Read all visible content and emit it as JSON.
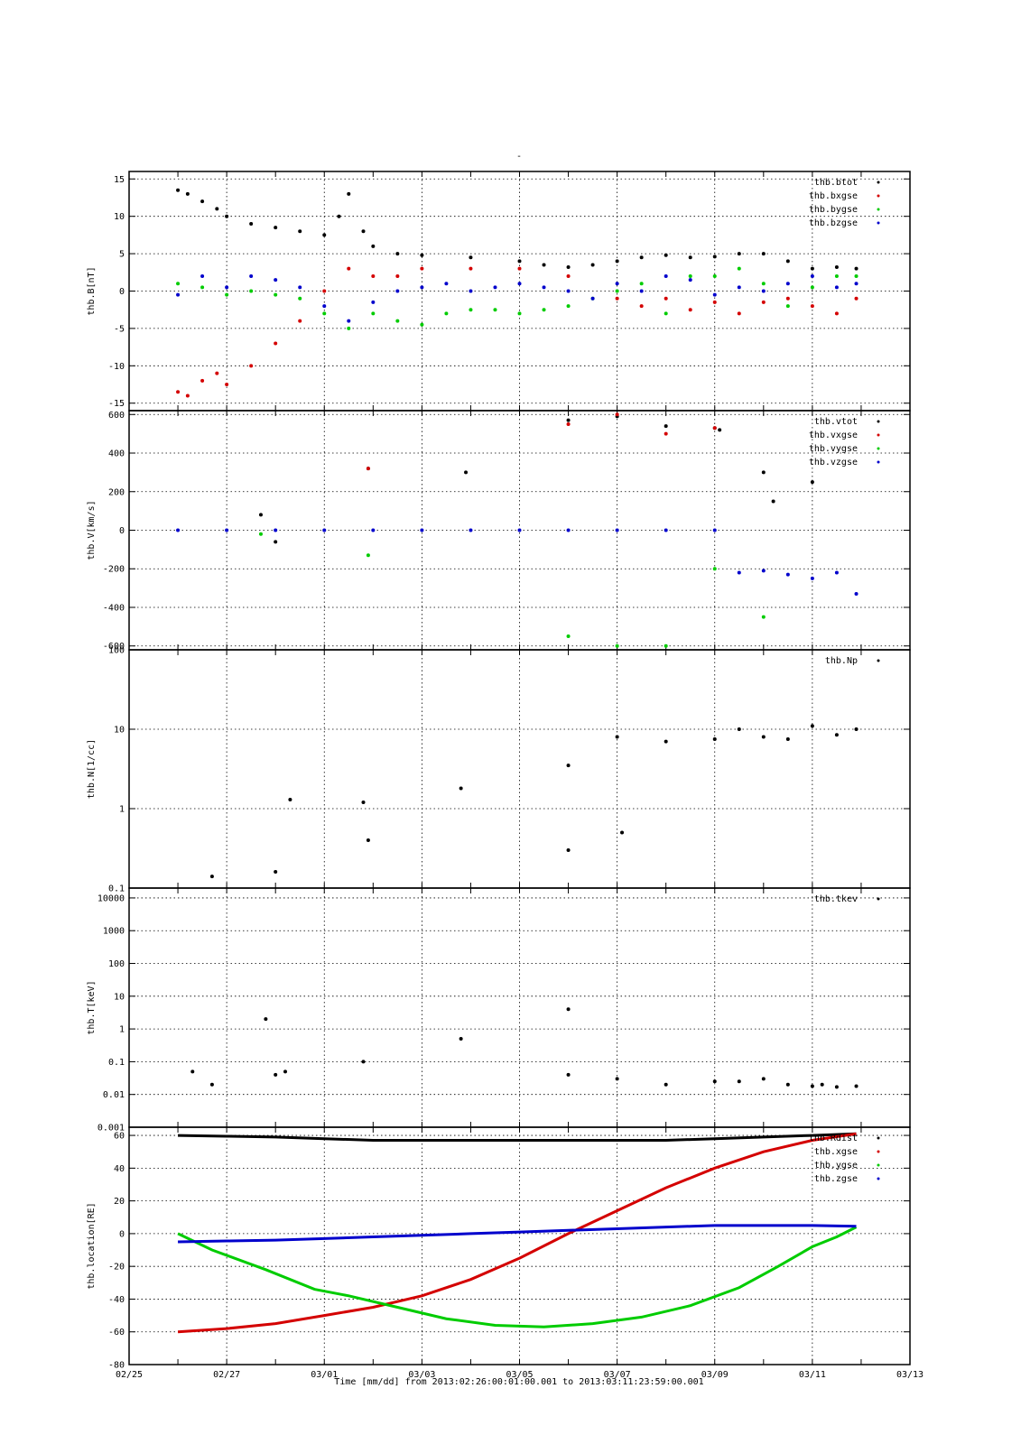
{
  "figure": {
    "title": "-",
    "x_axis": {
      "label": "Time [mm/dd]  from 2013:02:26:00:01:00.001  to  2013:03:11:23:59:00.001",
      "tick_labels": [
        "02/25",
        "02/27",
        "03/01",
        "03/03",
        "03/05",
        "03/07",
        "03/09",
        "03/11",
        "03/13"
      ]
    }
  },
  "chart_data": [
    {
      "type": "scatter",
      "ylabel": "thb.B[nT]",
      "ylim": [
        -16,
        16
      ],
      "yticks": [
        -15,
        -10,
        -5,
        0,
        5,
        10,
        15
      ],
      "ytick_labels": [
        "-15",
        "-10",
        "-5",
        "0",
        "5",
        "10",
        "15"
      ],
      "xlim": [
        0,
        16
      ],
      "grid": true,
      "legend_position": "top-right",
      "series": [
        {
          "name": "thb.btot",
          "color": "#000000",
          "x": [
            1.0,
            1.2,
            1.5,
            1.8,
            2.0,
            2.5,
            3.0,
            3.5,
            4.0,
            4.3,
            4.5,
            4.8,
            5.0,
            5.5,
            6.0,
            7.0,
            8.0,
            8.5,
            9.0,
            9.5,
            10.0,
            10.5,
            11.0,
            11.5,
            12.0,
            12.5,
            13.0,
            13.5,
            14.0,
            14.5,
            14.9
          ],
          "y": [
            13.5,
            13.0,
            12.0,
            11.0,
            10.0,
            9.0,
            8.5,
            8.0,
            7.5,
            10.0,
            13.0,
            8.0,
            6.0,
            5.0,
            4.8,
            4.5,
            4.0,
            3.5,
            3.2,
            3.5,
            4.0,
            4.5,
            4.8,
            4.5,
            4.6,
            5.0,
            5.0,
            4.0,
            3.0,
            3.2,
            3.0
          ]
        },
        {
          "name": "thb.bxgse",
          "color": "#d40000",
          "x": [
            1.0,
            1.2,
            1.5,
            1.8,
            2.0,
            2.5,
            3.0,
            3.5,
            4.0,
            4.5,
            5.0,
            5.5,
            6.0,
            7.0,
            8.0,
            9.0,
            10.0,
            10.5,
            11.0,
            11.5,
            12.0,
            12.5,
            13.0,
            13.5,
            14.0,
            14.5,
            14.9
          ],
          "y": [
            -13.5,
            -14.0,
            -12.0,
            -11.0,
            -12.5,
            -10.0,
            -7.0,
            -4.0,
            0.0,
            3.0,
            2.0,
            2.0,
            3.0,
            3.0,
            3.0,
            2.0,
            -1.0,
            -2.0,
            -1.0,
            -2.5,
            -1.5,
            -3.0,
            -1.5,
            -1.0,
            -2.0,
            -3.0,
            -1.0
          ]
        },
        {
          "name": "thb.bygse",
          "color": "#00cc00",
          "x": [
            1.0,
            1.5,
            2.0,
            2.5,
            3.0,
            3.5,
            4.0,
            4.5,
            5.0,
            5.5,
            6.0,
            6.5,
            7.0,
            7.5,
            8.0,
            8.5,
            9.0,
            9.5,
            10.0,
            10.5,
            11.0,
            11.5,
            12.0,
            12.5,
            13.0,
            13.5,
            14.0,
            14.5,
            14.9
          ],
          "y": [
            1.0,
            0.5,
            -0.5,
            0.0,
            -0.5,
            -1.0,
            -3.0,
            -5.0,
            -3.0,
            -4.0,
            -4.5,
            -3.0,
            -2.5,
            -2.5,
            -3.0,
            -2.5,
            -2.0,
            -1.0,
            0.0,
            1.0,
            -3.0,
            2.0,
            2.0,
            3.0,
            1.0,
            -2.0,
            0.5,
            2.0,
            2.0
          ]
        },
        {
          "name": "thb.bzgse",
          "color": "#0000cc",
          "x": [
            1.0,
            1.5,
            2.0,
            2.5,
            3.0,
            3.5,
            4.0,
            4.5,
            5.0,
            5.5,
            6.0,
            6.5,
            7.0,
            7.5,
            8.0,
            8.5,
            9.0,
            9.5,
            10.0,
            10.5,
            11.0,
            11.5,
            12.0,
            12.5,
            13.0,
            13.5,
            14.0,
            14.5,
            14.9
          ],
          "y": [
            -0.5,
            2.0,
            0.5,
            2.0,
            1.5,
            0.5,
            -2.0,
            -4.0,
            -1.5,
            0.0,
            0.5,
            1.0,
            0.0,
            0.5,
            1.0,
            0.5,
            0.0,
            -1.0,
            1.0,
            0.0,
            2.0,
            1.5,
            -0.5,
            0.5,
            0.0,
            1.0,
            2.0,
            0.5,
            1.0
          ]
        }
      ]
    },
    {
      "type": "scatter",
      "ylabel": "thb.V[km/s]",
      "ylim": [
        -620,
        620
      ],
      "yticks": [
        -600,
        -400,
        -200,
        0,
        200,
        400,
        600
      ],
      "ytick_labels": [
        "-600",
        "-400",
        "-200",
        "0",
        "200",
        "400",
        "600"
      ],
      "xlim": [
        0,
        16
      ],
      "grid": true,
      "legend_position": "top-right",
      "series": [
        {
          "name": "thb.vtot",
          "color": "#000000",
          "x": [
            2.7,
            3.0,
            4.9,
            6.9,
            9.0,
            10.0,
            11.0,
            12.0,
            12.1,
            13.0,
            13.2,
            14.0
          ],
          "y": [
            80,
            -60,
            320,
            300,
            570,
            590,
            540,
            530,
            520,
            300,
            150,
            250
          ]
        },
        {
          "name": "thb.vxgse",
          "color": "#d40000",
          "x": [
            4.9,
            9.0,
            10.0,
            11.0,
            12.0
          ],
          "y": [
            320,
            550,
            600,
            500,
            530
          ]
        },
        {
          "name": "thb.vygse",
          "color": "#00cc00",
          "x": [
            2.7,
            4.9,
            9.0,
            10.0,
            11.0,
            12.0,
            13.0
          ],
          "y": [
            -20,
            -130,
            -550,
            -600,
            -600,
            -200,
            -450
          ]
        },
        {
          "name": "thb.vzgse",
          "color": "#0000cc",
          "x": [
            1.0,
            2.0,
            3.0,
            4.0,
            5.0,
            6.0,
            7.0,
            8.0,
            9.0,
            10.0,
            11.0,
            12.0,
            12.5,
            13.0,
            13.5,
            14.0,
            14.5,
            14.9
          ],
          "y": [
            0,
            0,
            0,
            0,
            0,
            0,
            0,
            0,
            0,
            0,
            0,
            0,
            -220,
            -210,
            -230,
            -250,
            -220,
            -330
          ]
        }
      ]
    },
    {
      "type": "scatter",
      "ylabel": "thb.N[1/cc]",
      "yscale": "log",
      "ylim": [
        0.1,
        100
      ],
      "yticks": [
        0.1,
        1,
        10,
        100
      ],
      "ytick_labels": [
        "0.1",
        "1",
        "10",
        "100"
      ],
      "xlim": [
        0,
        16
      ],
      "grid": true,
      "legend_position": "top-right",
      "series": [
        {
          "name": "thb.Np",
          "color": "#000000",
          "x": [
            1.7,
            3.0,
            3.3,
            4.8,
            4.9,
            6.8,
            9.0,
            9.0,
            10.0,
            10.1,
            11.0,
            12.0,
            12.5,
            13.0,
            13.5,
            14.0,
            14.5,
            14.9
          ],
          "y": [
            0.14,
            0.16,
            1.3,
            1.2,
            0.4,
            1.8,
            3.5,
            0.3,
            8.0,
            0.5,
            7.0,
            7.5,
            10.0,
            8.0,
            7.5,
            11.0,
            8.5,
            10.0
          ]
        }
      ]
    },
    {
      "type": "scatter",
      "ylabel": "thb.T[keV]",
      "yscale": "log",
      "ylim": [
        0.001,
        20000
      ],
      "yticks": [
        0.001,
        0.01,
        0.1,
        1,
        10,
        100,
        1000,
        10000
      ],
      "ytick_labels": [
        "0.001",
        "0.01",
        "0.1",
        "1",
        "10",
        "100",
        "1000",
        "10000"
      ],
      "xlim": [
        0,
        16
      ],
      "grid": true,
      "legend_position": "top-right",
      "series": [
        {
          "name": "thb.tkev",
          "color": "#000000",
          "x": [
            1.3,
            1.7,
            2.8,
            3.0,
            3.2,
            4.8,
            6.8,
            9.0,
            9.0,
            10.0,
            11.0,
            12.0,
            12.5,
            13.0,
            13.5,
            14.0,
            14.2,
            14.5,
            14.9
          ],
          "y": [
            0.05,
            0.02,
            2.0,
            0.04,
            0.05,
            0.1,
            0.5,
            4.0,
            0.04,
            0.03,
            0.02,
            0.025,
            0.025,
            0.03,
            0.02,
            0.018,
            0.02,
            0.017,
            0.018
          ]
        }
      ]
    },
    {
      "type": "line",
      "ylabel": "thb.location[RE]",
      "ylim": [
        -80,
        65
      ],
      "yticks": [
        -80,
        -60,
        -40,
        -20,
        0,
        20,
        40,
        60
      ],
      "ytick_labels": [
        "-80",
        "-60",
        "-40",
        "-20",
        "0",
        "20",
        "40",
        "60"
      ],
      "xlim": [
        0,
        16
      ],
      "grid": true,
      "legend_position": "top-right",
      "series": [
        {
          "name": "thb.Rdist",
          "color": "#000000",
          "x": [
            1.0,
            2.0,
            3.0,
            4.0,
            5.0,
            6.0,
            7.0,
            8.0,
            9.0,
            10.0,
            11.0,
            12.0,
            13.0,
            14.0,
            14.9
          ],
          "y": [
            60,
            59.5,
            59,
            58,
            57,
            57,
            57,
            57,
            57,
            57,
            57,
            58,
            59,
            60,
            61
          ]
        },
        {
          "name": "thb.xgse",
          "color": "#d40000",
          "x": [
            1.0,
            2.0,
            3.0,
            4.0,
            5.0,
            6.0,
            7.0,
            8.0,
            9.0,
            10.0,
            11.0,
            12.0,
            13.0,
            14.0,
            14.9
          ],
          "y": [
            -60,
            -58,
            -55,
            -50,
            -45,
            -38,
            -28,
            -15,
            0,
            14,
            28,
            40,
            50,
            57,
            61
          ]
        },
        {
          "name": "thb.ygse",
          "color": "#00cc00",
          "x": [
            1.0,
            1.7,
            2.8,
            3.8,
            4.5,
            5.5,
            6.5,
            7.5,
            8.5,
            9.5,
            10.5,
            11.5,
            12.5,
            13.3,
            14.0,
            14.5,
            14.9
          ],
          "y": [
            0,
            -10,
            -22,
            -34,
            -38,
            -45,
            -52,
            -56,
            -57,
            -55,
            -51,
            -44,
            -33,
            -20,
            -8,
            -2,
            4
          ]
        },
        {
          "name": "thb.zgse",
          "color": "#0000cc",
          "x": [
            1.0,
            2.0,
            3.0,
            4.0,
            5.0,
            6.0,
            7.0,
            8.0,
            9.0,
            10.0,
            11.0,
            12.0,
            13.0,
            14.0,
            14.9
          ],
          "y": [
            -5,
            -4.5,
            -4,
            -3,
            -2,
            -1,
            0,
            1,
            2,
            3,
            4,
            5,
            5,
            5,
            4.5
          ]
        }
      ]
    }
  ]
}
